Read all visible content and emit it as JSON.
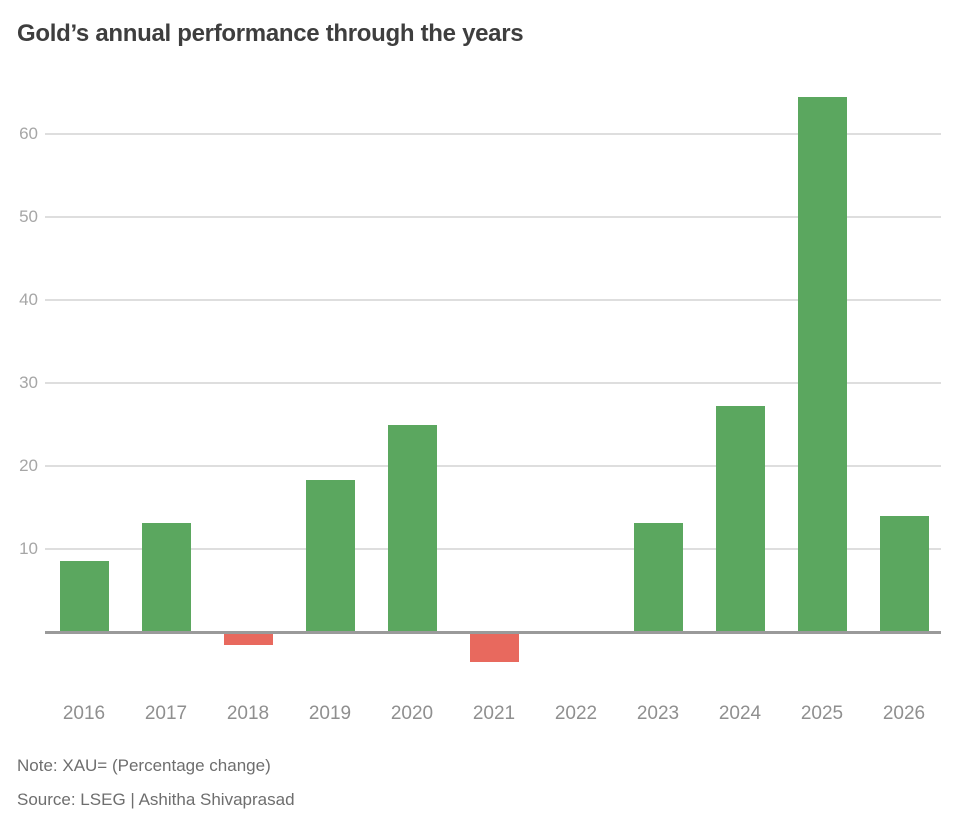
{
  "chart_data": {
    "type": "bar",
    "title": "Gold’s annual performance through the years",
    "categories": [
      "2016",
      "2017",
      "2018",
      "2019",
      "2020",
      "2021",
      "2022",
      "2023",
      "2024",
      "2025",
      "2026"
    ],
    "values": [
      8.5,
      13.1,
      -1.6,
      18.3,
      25.0,
      -3.6,
      -0.3,
      13.1,
      27.2,
      64.4,
      14.0
    ],
    "xlabel": "",
    "ylabel": "",
    "yticks": [
      10,
      20,
      30,
      40,
      50,
      60
    ],
    "ylim": [
      -7,
      65
    ],
    "grid": "horizontal",
    "legend": "none",
    "positive_color": "#5ba75f",
    "negative_color": "#e8695e",
    "gridline_color": "#dedede",
    "zeroline_color": "#9a9a9a",
    "note": "Note: XAU= (Percentage change)",
    "source": "Source: LSEG | Ashitha Shivaprasad"
  }
}
